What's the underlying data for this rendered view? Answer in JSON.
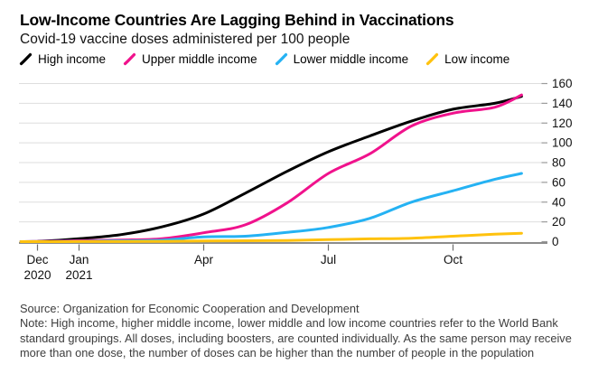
{
  "chart_data": {
    "type": "line",
    "title": "Low-Income Countries Are Lagging Behind in Vaccinations",
    "subtitle": "Covid-19 vaccine doses administered per 100 people",
    "x_unit": "months since Dec 1, 2020 (fractional start/end points)",
    "x": [
      -0.4,
      0,
      1,
      2,
      3,
      4,
      5,
      6,
      7,
      8,
      9,
      10,
      11,
      11.65
    ],
    "x_tick_labels": [
      {
        "t": 0,
        "label": "Dec",
        "year": "2020"
      },
      {
        "t": 1,
        "label": "Jan",
        "year": "2021"
      },
      {
        "t": 4,
        "label": "Apr"
      },
      {
        "t": 7,
        "label": "Jul"
      },
      {
        "t": 10,
        "label": "Oct"
      }
    ],
    "ylim": [
      0,
      160
    ],
    "y_ticks": [
      0,
      20,
      40,
      60,
      80,
      100,
      120,
      140,
      160
    ],
    "y_axis_side": "right",
    "grid": "horizontal",
    "legend_position": "top",
    "series": [
      {
        "name": "High income",
        "color": "#000000",
        "values": [
          0,
          0.2,
          2.9,
          7,
          15,
          28,
          49,
          71,
          91,
          107,
          122,
          134,
          140,
          147
        ]
      },
      {
        "name": "Upper middle income",
        "color": "#f0128c",
        "values": [
          0,
          0.1,
          1,
          1.6,
          3,
          9,
          17,
          39,
          69,
          89,
          117,
          130,
          136,
          148.5
        ]
      },
      {
        "name": "Lower middle income",
        "color": "#25b2f3",
        "values": [
          0,
          0,
          0.3,
          0.8,
          1.5,
          4.8,
          5.5,
          9.3,
          14.4,
          23.6,
          40,
          51.5,
          63,
          69
        ]
      },
      {
        "name": "Low income",
        "color": "#ffc20e",
        "values": [
          0,
          0,
          0.05,
          0.1,
          0.3,
          0.7,
          0.9,
          1.2,
          2,
          2.8,
          3.5,
          5.5,
          7.5,
          8.5
        ]
      }
    ]
  },
  "footer": {
    "source": "Source: Organization for Economic Cooperation and Development",
    "note": "Note: High income, higher middle income, lower middle and low income countries refer to the World Bank standard groupings. All doses, including boosters, are counted individually. As the same person may receive more than one dose, the number of doses can be higher than the number of people in the population"
  }
}
